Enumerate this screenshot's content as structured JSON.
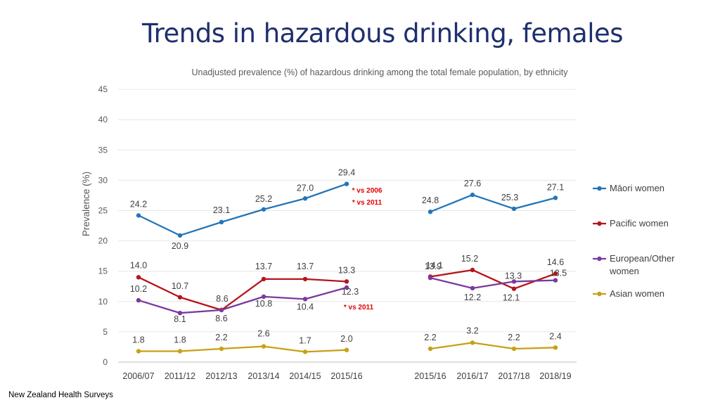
{
  "title": "Trends in hazardous drinking, females",
  "source": "New Zealand Health Surveys",
  "chart_data": {
    "type": "line",
    "title": "Trends in hazardous drinking, females",
    "subtitle": "Unadjusted prevalence (%) of hazardous drinking among the total female population, by ethnicity",
    "ylabel": "Prevalence (%)",
    "xlabel": "",
    "ylim": [
      0,
      45
    ],
    "yticks": [
      "0",
      "5",
      "10",
      "15",
      "20",
      "25",
      "30",
      "35",
      "40",
      "45"
    ],
    "grid": true,
    "legend_position": "right",
    "groups": [
      {
        "categories": [
          "2006/07",
          "2011/12",
          "2012/13",
          "2013/14",
          "2014/15",
          "2015/16"
        ]
      },
      {
        "categories": [
          "2015/16",
          "2016/17",
          "2017/18",
          "2018/19"
        ]
      }
    ],
    "series": [
      {
        "name": "Māori women",
        "color": "#2475b8",
        "groups": [
          [
            24.2,
            20.9,
            23.1,
            25.2,
            27.0,
            29.4
          ],
          [
            24.8,
            27.6,
            25.3,
            27.1
          ]
        ],
        "labels": [
          [
            "24.2",
            "20.9",
            "23.1",
            "25.2",
            "27.0",
            "29.4"
          ],
          [
            "24.8",
            "27.6",
            "25.3",
            "27.1"
          ]
        ]
      },
      {
        "name": "Pacific women",
        "color": "#b5151c",
        "groups": [
          [
            14.0,
            10.7,
            8.6,
            13.7,
            13.7,
            13.3
          ],
          [
            14.1,
            15.2,
            12.1,
            14.6
          ]
        ],
        "labels": [
          [
            "14.0",
            "10.7",
            "8.6",
            "13.7",
            "13.7",
            "13.3"
          ],
          [
            "14.1",
            "15.2",
            "12.1",
            "14.6"
          ]
        ]
      },
      {
        "name": "European/Other women",
        "color": "#7a3a9e",
        "groups": [
          [
            10.2,
            8.1,
            8.6,
            10.8,
            10.4,
            12.3
          ],
          [
            13.9,
            12.2,
            13.3,
            13.5
          ]
        ],
        "labels": [
          [
            "10.2",
            "8.1",
            "8.6",
            "10.8",
            "10.4",
            "12.3"
          ],
          [
            "13.9",
            "12.2",
            "13.3",
            "13.5"
          ]
        ]
      },
      {
        "name": "Asian women",
        "color": "#c8a013",
        "groups": [
          [
            1.8,
            1.8,
            2.2,
            2.6,
            1.7,
            2.0
          ],
          [
            2.2,
            3.2,
            2.2,
            2.4
          ]
        ],
        "labels": [
          [
            "1.8",
            "1.8",
            "2.2",
            "2.6",
            "1.7",
            "2.0"
          ],
          [
            "2.2",
            "3.2",
            "2.2",
            "2.4"
          ]
        ]
      }
    ],
    "annotations": [
      {
        "text": "* vs 2006",
        "color": "#e00000"
      },
      {
        "text": "* vs 2011",
        "color": "#e00000"
      },
      {
        "text": "* vs 2011",
        "color": "#e00000"
      }
    ]
  }
}
